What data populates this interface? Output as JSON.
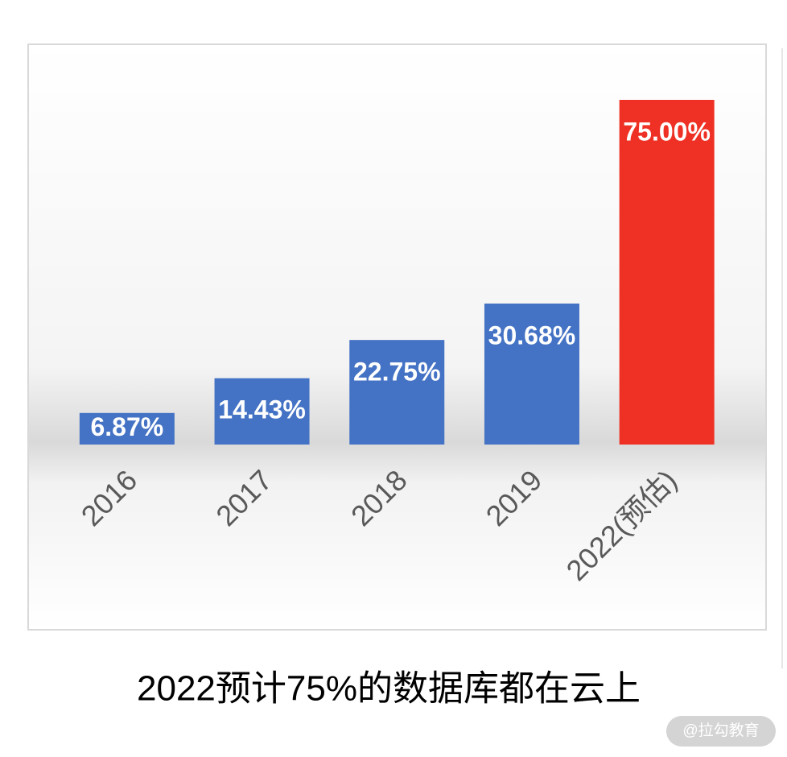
{
  "chart_data": {
    "type": "bar",
    "title": "2022预计75%的数据库都在云上",
    "categories": [
      "2016",
      "2017",
      "2018",
      "2019",
      "2022(预估)"
    ],
    "values": [
      6.87,
      14.43,
      22.75,
      30.68,
      75.0
    ],
    "value_labels": [
      "6.87%",
      "14.43%",
      "22.75%",
      "30.68%",
      "75.00%"
    ],
    "colors": [
      "#4472c4",
      "#4472c4",
      "#4472c4",
      "#4472c4",
      "#ee3124"
    ],
    "watermark": "@拉勾教育"
  }
}
